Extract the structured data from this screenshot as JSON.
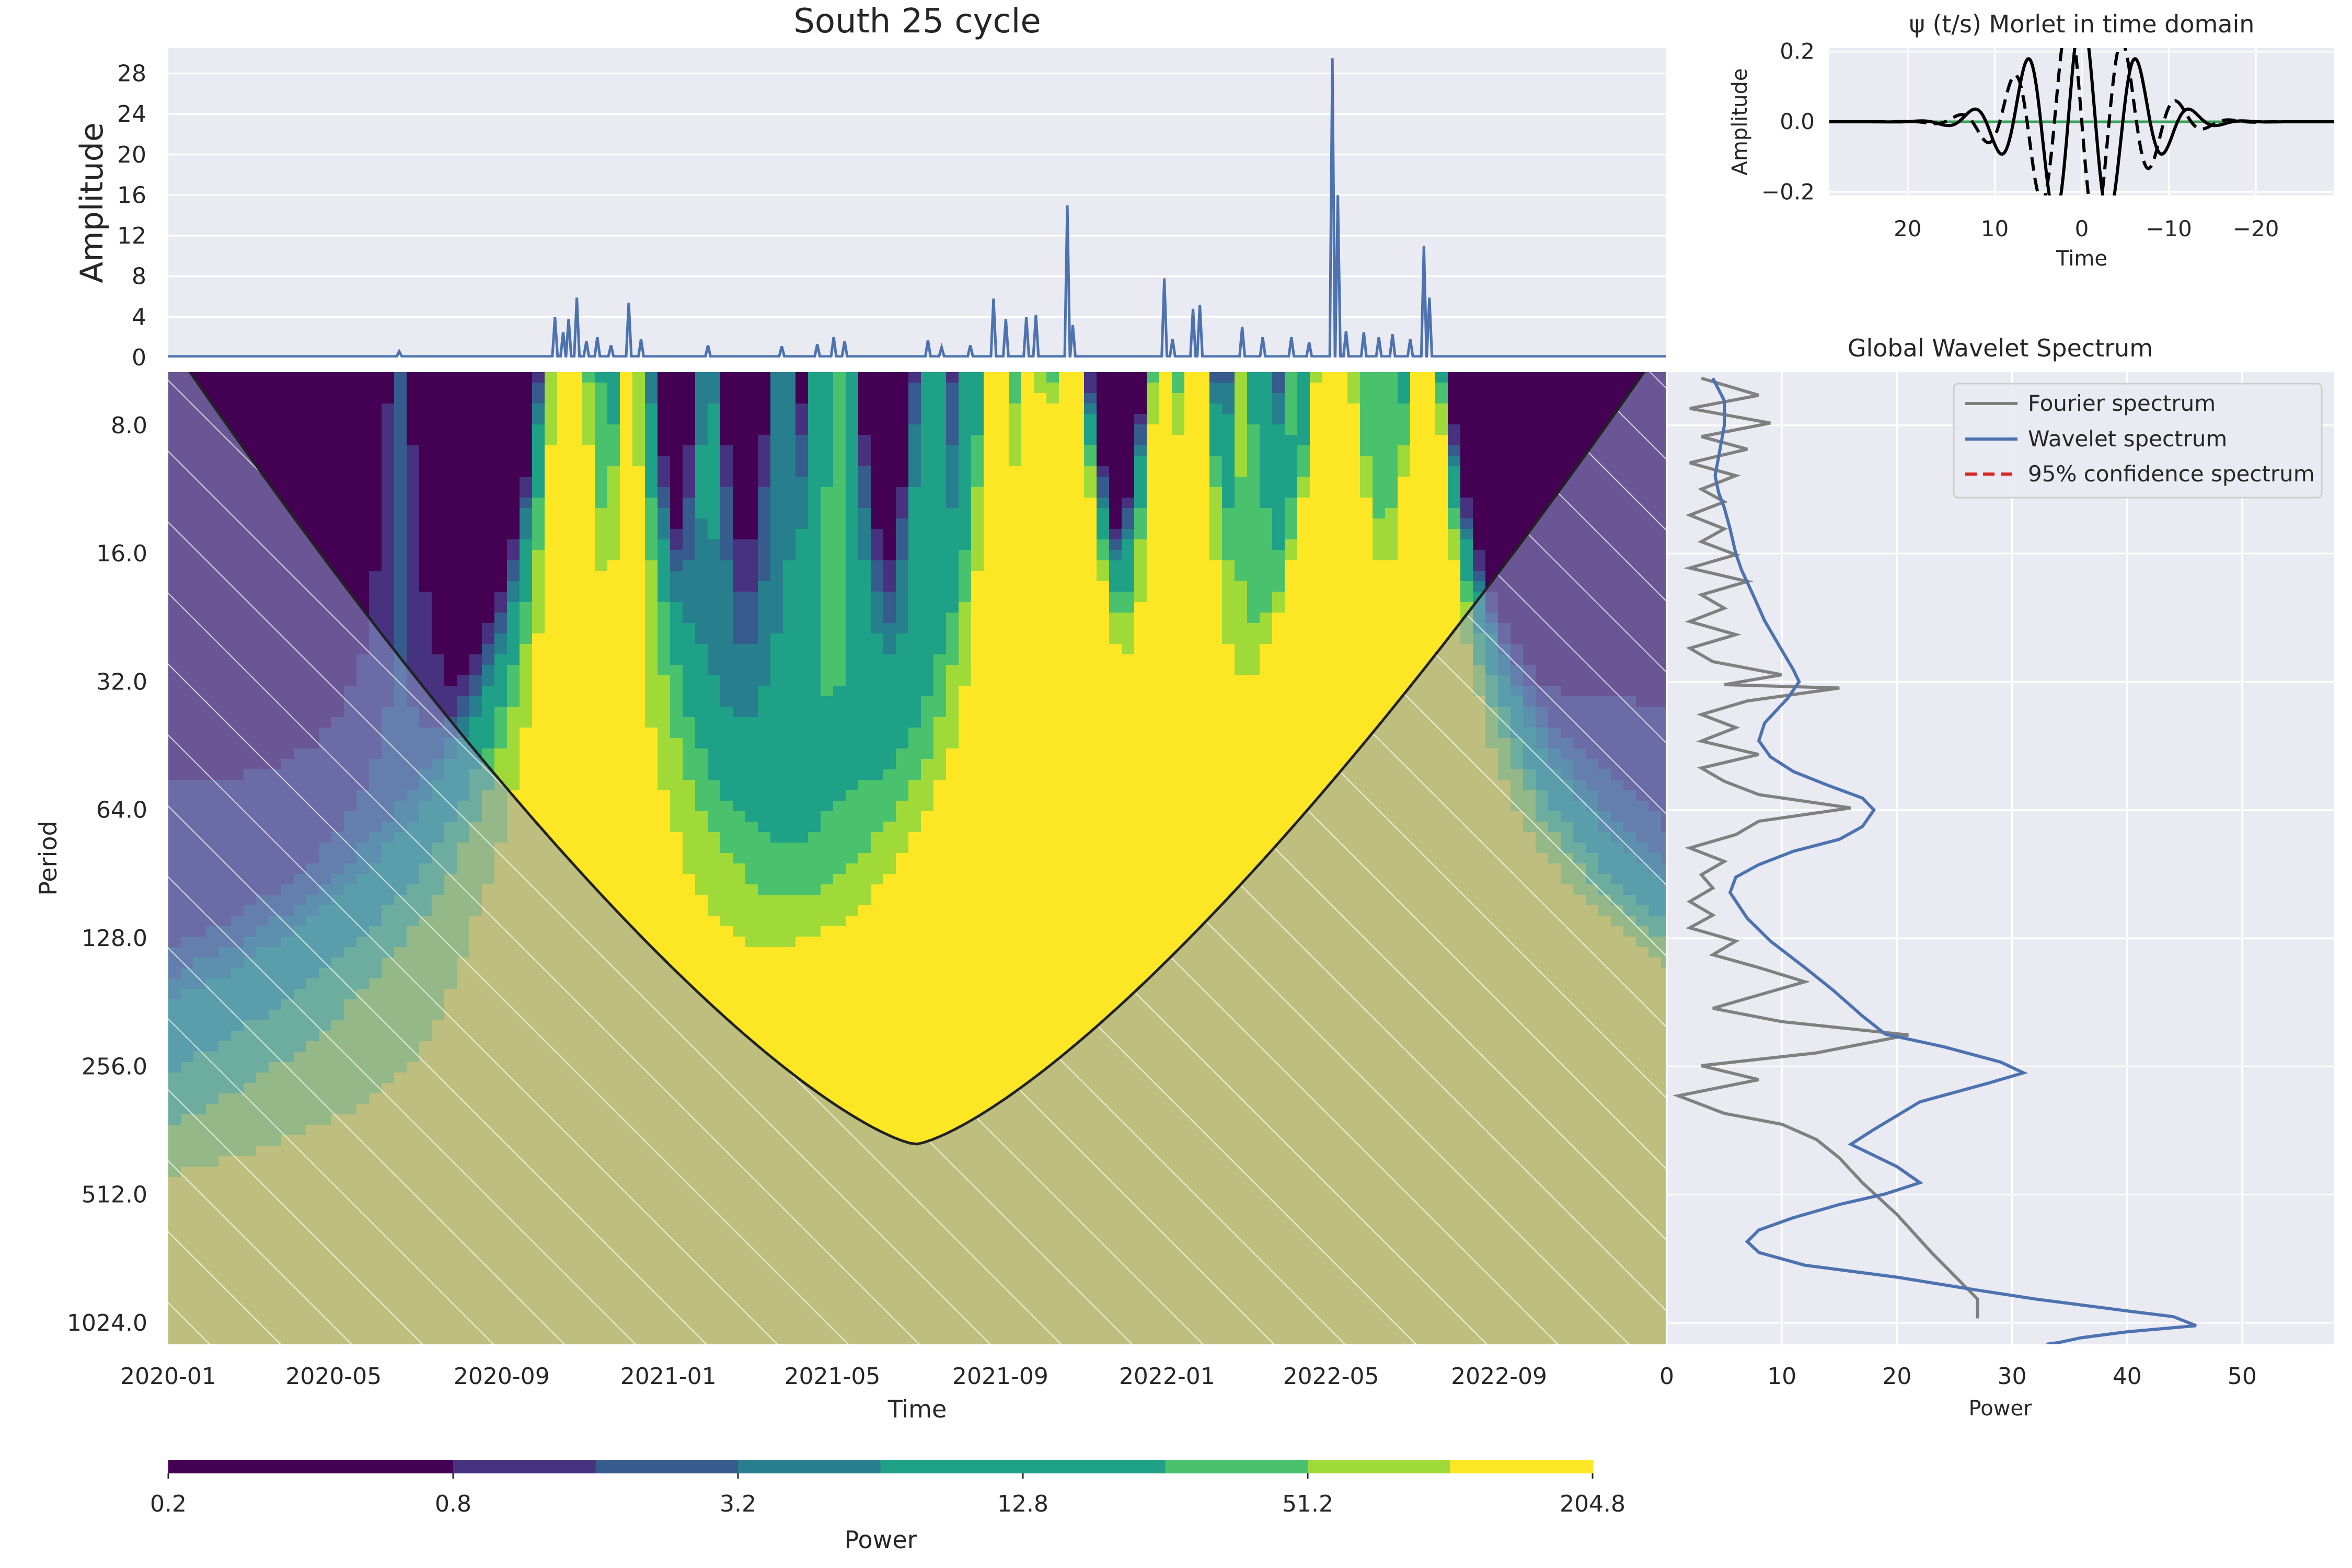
{
  "colors": {
    "axes_bg": "#eaeaf2",
    "grid": "#ffffff",
    "signal": "#4c72b0",
    "fourier": "#808080",
    "wavelet_spectrum": "#4c72b0",
    "confidence": "#d62728",
    "morlet_real": "#000000",
    "morlet_zero": "#3aa35a",
    "coi_hatch_fill": "#8b9dc8",
    "viridis": [
      "#440154",
      "#46327e",
      "#365c8d",
      "#277f8e",
      "#1fa187",
      "#4ac16d",
      "#a0da39",
      "#fde725"
    ]
  },
  "chart_data": [
    {
      "type": "line",
      "role": "time-series",
      "title": "South 25 cycle",
      "xlabel": "",
      "ylabel": "Amplitude",
      "ylim": [
        0,
        30.5
      ],
      "yticks": [
        0,
        4,
        8,
        12,
        16,
        20,
        24,
        28
      ],
      "baseline": 0.1,
      "peaks": [
        {
          "t": "2020-06-18",
          "v": 0.6
        },
        {
          "t": "2020-10-10",
          "v": 4.0
        },
        {
          "t": "2020-10-16",
          "v": 2.5
        },
        {
          "t": "2020-10-20",
          "v": 3.8
        },
        {
          "t": "2020-10-26",
          "v": 5.9
        },
        {
          "t": "2020-11-02",
          "v": 1.6
        },
        {
          "t": "2020-11-10",
          "v": 2.0
        },
        {
          "t": "2020-11-20",
          "v": 1.2
        },
        {
          "t": "2020-12-03",
          "v": 5.4
        },
        {
          "t": "2020-12-12",
          "v": 1.8
        },
        {
          "t": "2021-01-30",
          "v": 1.2
        },
        {
          "t": "2021-03-25",
          "v": 1.1
        },
        {
          "t": "2021-04-20",
          "v": 1.3
        },
        {
          "t": "2021-05-02",
          "v": 2.0
        },
        {
          "t": "2021-05-10",
          "v": 1.6
        },
        {
          "t": "2021-07-10",
          "v": 1.7
        },
        {
          "t": "2021-07-20",
          "v": 1.0
        },
        {
          "t": "2021-08-10",
          "v": 1.2
        },
        {
          "t": "2021-08-27",
          "v": 5.8
        },
        {
          "t": "2021-09-05",
          "v": 3.8
        },
        {
          "t": "2021-09-20",
          "v": 4.0
        },
        {
          "t": "2021-09-27",
          "v": 4.2
        },
        {
          "t": "2021-10-20",
          "v": 15.0
        },
        {
          "t": "2021-10-24",
          "v": 3.2
        },
        {
          "t": "2021-12-30",
          "v": 7.8
        },
        {
          "t": "2022-01-05",
          "v": 1.8
        },
        {
          "t": "2022-01-20",
          "v": 4.8
        },
        {
          "t": "2022-01-25",
          "v": 5.2
        },
        {
          "t": "2022-02-25",
          "v": 3.0
        },
        {
          "t": "2022-03-12",
          "v": 2.0
        },
        {
          "t": "2022-04-02",
          "v": 2.0
        },
        {
          "t": "2022-04-15",
          "v": 1.5
        },
        {
          "t": "2022-05-02",
          "v": 29.5
        },
        {
          "t": "2022-05-06",
          "v": 16.0
        },
        {
          "t": "2022-05-12",
          "v": 2.6
        },
        {
          "t": "2022-05-25",
          "v": 2.5
        },
        {
          "t": "2022-06-05",
          "v": 2.0
        },
        {
          "t": "2022-06-15",
          "v": 2.3
        },
        {
          "t": "2022-06-28",
          "v": 1.8
        },
        {
          "t": "2022-07-08",
          "v": 11.0
        },
        {
          "t": "2022-07-12",
          "v": 5.9
        }
      ]
    },
    {
      "type": "line",
      "role": "morlet-wavelet",
      "title": "ψ (t/s) Morlet in time domain",
      "xlabel": "Time",
      "ylabel": "Amplitude",
      "xlim": [
        29,
        -29
      ],
      "ylim": [
        -0.21,
        0.21
      ],
      "xticks": [
        20,
        10,
        0,
        -10,
        -20
      ],
      "xtick_labels": [
        "20",
        "10",
        "0",
        "−10",
        "−20"
      ],
      "yticks": [
        -0.2,
        0.0,
        0.2
      ],
      "ytick_labels": [
        "−0.2",
        "0.0",
        "0.2"
      ],
      "omega0": 6,
      "scale": 6,
      "series": [
        {
          "component": "real",
          "style": "solid"
        },
        {
          "component": "imaginary",
          "style": "dashed"
        },
        {
          "component": "zero",
          "style": "solid"
        }
      ]
    },
    {
      "type": "heatmap",
      "role": "wavelet-power",
      "xlabel": "Time",
      "ylabel": "Period",
      "xtick_labels": [
        "2020-01",
        "2020-05",
        "2020-09",
        "2021-01",
        "2021-05",
        "2021-09",
        "2022-01",
        "2022-05",
        "2022-09"
      ],
      "ytick_labels": [
        "8.0",
        "16.0",
        "32.0",
        "64.0",
        "128.0",
        "256.0",
        "512.0",
        "1024.0"
      ],
      "y_scale": "log2",
      "period_range": [
        6.0,
        1150
      ],
      "time_range": [
        "2020-01-01",
        "2023-01-01"
      ],
      "coi_minimum": {
        "t": "2021-07-01",
        "period": 390
      },
      "colorbar": {
        "label": "Power",
        "scale": "log",
        "levels": [
          0.2,
          0.4,
          0.8,
          1.6,
          3.2,
          6.4,
          12.8,
          25.6,
          51.2,
          102.4,
          204.8
        ],
        "tick_labels": [
          "0.2",
          "0.8",
          "3.2",
          "12.8",
          "51.2",
          "204.8"
        ]
      }
    },
    {
      "type": "line",
      "role": "global-wavelet-spectrum",
      "title": "Global Wavelet Spectrum",
      "xlabel": "Power",
      "ylabel": "",
      "xlim": [
        0,
        58
      ],
      "xticks": [
        0,
        10,
        20,
        30,
        40,
        50
      ],
      "legend": {
        "placement": "top-right"
      },
      "series": [
        {
          "name": "Fourier spectrum",
          "points": [
            [
              3,
              6.2
            ],
            [
              8,
              6.8
            ],
            [
              2,
              7.3
            ],
            [
              9,
              7.9
            ],
            [
              3,
              8.5
            ],
            [
              7,
              9.1
            ],
            [
              2,
              9.8
            ],
            [
              6,
              10.5
            ],
            [
              3,
              11.3
            ],
            [
              5,
              12.1
            ],
            [
              2,
              13.0
            ],
            [
              5,
              14.0
            ],
            [
              3,
              15.0
            ],
            [
              6,
              16.1
            ],
            [
              2,
              17.3
            ],
            [
              7,
              18.6
            ],
            [
              3,
              20.0
            ],
            [
              5,
              21.5
            ],
            [
              2,
              23.1
            ],
            [
              6,
              24.8
            ],
            [
              2,
              26.7
            ],
            [
              4,
              28.7
            ],
            [
              10,
              30.8
            ],
            [
              5,
              32.5
            ],
            [
              15,
              33.1
            ],
            [
              7,
              35.5
            ],
            [
              3,
              38.2
            ],
            [
              6,
              41.0
            ],
            [
              3,
              44.1
            ],
            [
              8,
              47.4
            ],
            [
              3,
              51.0
            ],
            [
              5,
              54.8
            ],
            [
              8,
              58.9
            ],
            [
              16,
              63.3
            ],
            [
              8,
              68.0
            ],
            [
              6,
              73.1
            ],
            [
              2,
              78.6
            ],
            [
              5,
              84.5
            ],
            [
              3,
              90.8
            ],
            [
              4,
              97.6
            ],
            [
              2,
              105
            ],
            [
              4,
              113
            ],
            [
              2,
              121
            ],
            [
              6,
              130
            ],
            [
              4,
              140
            ],
            [
              8,
              150
            ],
            [
              12,
              162
            ],
            [
              8,
              174
            ],
            [
              4,
              187
            ],
            [
              10,
              201
            ],
            [
              21,
              216
            ],
            [
              13,
              238
            ],
            [
              3,
              255
            ],
            [
              8,
              275
            ],
            [
              1,
              300
            ],
            [
              5,
              330
            ],
            [
              10,
              350
            ],
            [
              13,
              380
            ],
            [
              15,
              420
            ],
            [
              17,
              480
            ],
            [
              20,
              570
            ],
            [
              23,
              700
            ],
            [
              27,
              900
            ],
            [
              27,
              1000
            ]
          ]
        },
        {
          "name": "Wavelet spectrum",
          "points": [
            [
              4,
              6.2
            ],
            [
              5,
              7.0
            ],
            [
              5,
              8.0
            ],
            [
              4.5,
              9.5
            ],
            [
              4.2,
              10.5
            ],
            [
              4.5,
              11.5
            ],
            [
              5,
              12.5
            ],
            [
              5.5,
              14.0
            ],
            [
              6,
              16.0
            ],
            [
              6.5,
              17.5
            ],
            [
              7.5,
              20.0
            ],
            [
              8.5,
              23.0
            ],
            [
              10,
              27.0
            ],
            [
              11,
              30.0
            ],
            [
              11.5,
              32.0
            ],
            [
              10.5,
              35.0
            ],
            [
              8.5,
              40.0
            ],
            [
              8,
              44.0
            ],
            [
              9,
              48.0
            ],
            [
              11,
              52.0
            ],
            [
              14,
              56.0
            ],
            [
              17,
              60.0
            ],
            [
              18,
              64.0
            ],
            [
              17,
              70.0
            ],
            [
              15,
              75.0
            ],
            [
              11,
              80.0
            ],
            [
              8,
              86.0
            ],
            [
              6,
              92.0
            ],
            [
              5.5,
              100
            ],
            [
              7,
              115
            ],
            [
              9,
              130
            ],
            [
              12,
              150
            ],
            [
              14.5,
              170
            ],
            [
              17,
              195
            ],
            [
              19,
              215
            ],
            [
              24,
              230
            ],
            [
              29,
              250
            ],
            [
              31,
              265
            ],
            [
              28,
              280
            ],
            [
              22,
              310
            ],
            [
              18,
              360
            ],
            [
              16,
              390
            ],
            [
              20,
              440
            ],
            [
              22,
              480
            ],
            [
              19,
              510
            ],
            [
              15,
              540
            ],
            [
              11,
              580
            ],
            [
              8,
              620
            ],
            [
              7,
              660
            ],
            [
              8,
              700
            ],
            [
              12,
              750
            ],
            [
              20,
              800
            ],
            [
              26,
              850
            ],
            [
              32,
              900
            ],
            [
              40,
              960
            ],
            [
              44,
              990
            ],
            [
              46,
              1040
            ],
            [
              40,
              1075
            ],
            [
              36,
              1110
            ],
            [
              34,
              1140
            ],
            [
              33,
              1150
            ]
          ]
        },
        {
          "name": "95% confidence spectrum",
          "points": []
        }
      ]
    }
  ]
}
